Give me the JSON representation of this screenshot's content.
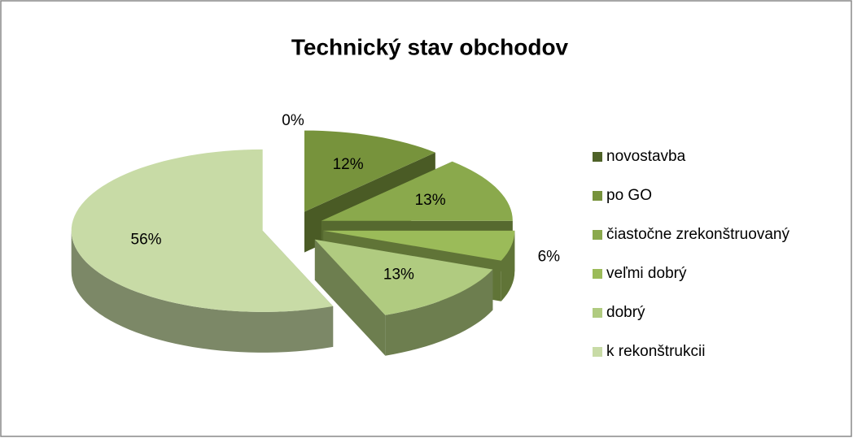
{
  "chart_data": {
    "type": "pie3d",
    "title": "Technický stav obchodov",
    "categories": [
      "novostavba",
      "po GO",
      "čiastočne zrekonštruovaný",
      "veľmi dobrý",
      "dobrý",
      "k rekonštrukcii"
    ],
    "values": [
      0,
      12,
      13,
      6,
      13,
      56
    ],
    "value_labels": [
      "0%",
      "12%",
      "13%",
      "6%",
      "13%",
      "56%"
    ],
    "colors": [
      "#4f6228",
      "#77933c",
      "#8aa94c",
      "#9bbb59",
      "#b0cb80",
      "#c8dba6"
    ],
    "legend": "right"
  }
}
